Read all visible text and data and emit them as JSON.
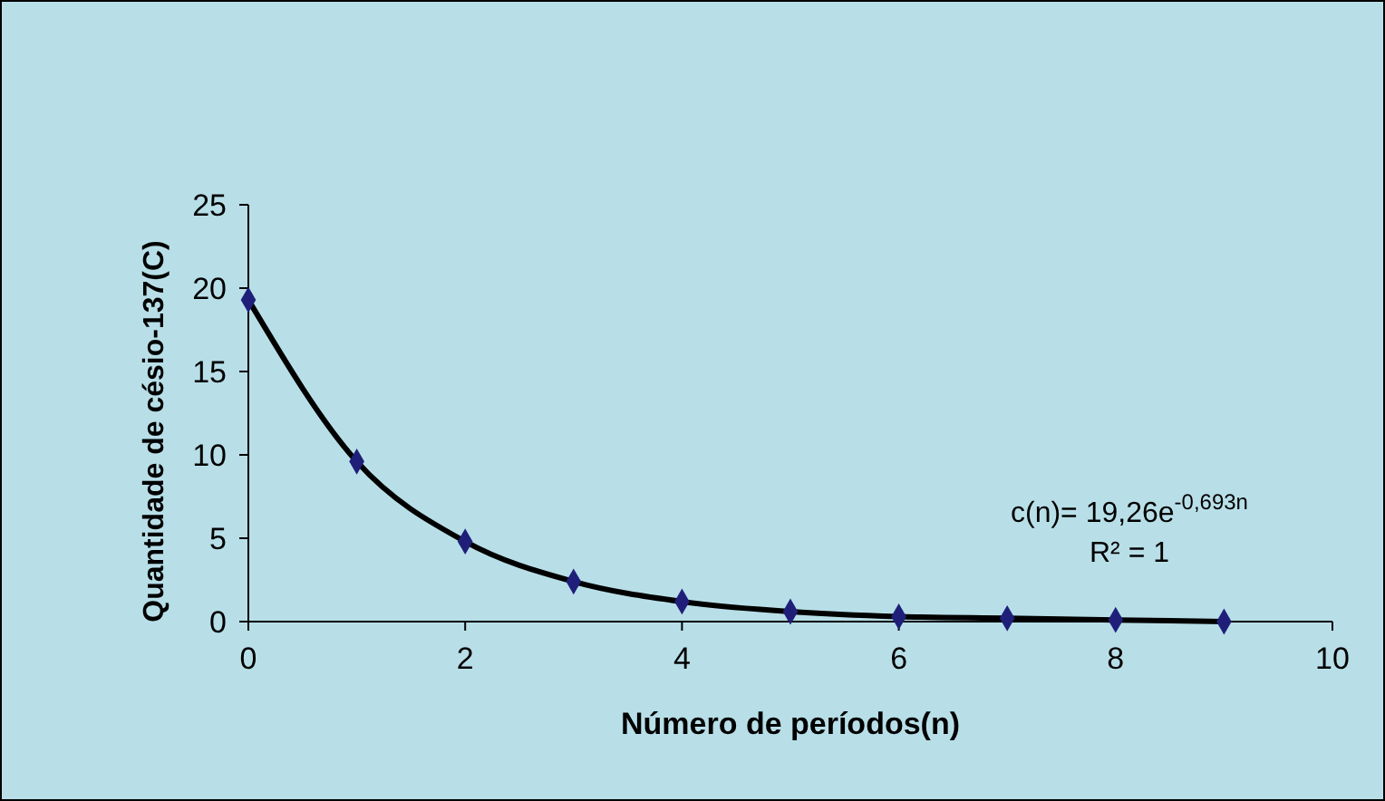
{
  "chart_data": {
    "type": "scatter",
    "xlabel": "Número de períodos(n)",
    "ylabel": "Quantidade de césio-137(C)",
    "x": [
      0,
      1,
      2,
      3,
      4,
      5,
      6,
      7,
      8,
      9
    ],
    "series": [
      {
        "marker": "diamond",
        "color": "#1f1f7a",
        "values": [
          19.3,
          9.6,
          4.8,
          2.4,
          1.2,
          0.6,
          0.3,
          0.2,
          0.1,
          0.0
        ]
      },
      {
        "type": "line",
        "color": "#000000",
        "x": [
          0,
          1,
          2,
          3,
          4,
          5,
          6,
          7,
          8,
          9
        ],
        "values": [
          19.3,
          9.6,
          4.8,
          2.4,
          1.2,
          0.6,
          0.3,
          0.2,
          0.1,
          0.0
        ]
      }
    ],
    "xlim": [
      0,
      10
    ],
    "xticks": [
      0,
      2,
      4,
      6,
      8,
      10
    ],
    "ylim": [
      0,
      25
    ],
    "yticks": [
      0,
      5,
      10,
      15,
      20,
      25
    ],
    "grid": false,
    "annotations": [
      "c(n)= 19,26e$^{-0,693n}$",
      "R² = 1"
    ]
  }
}
